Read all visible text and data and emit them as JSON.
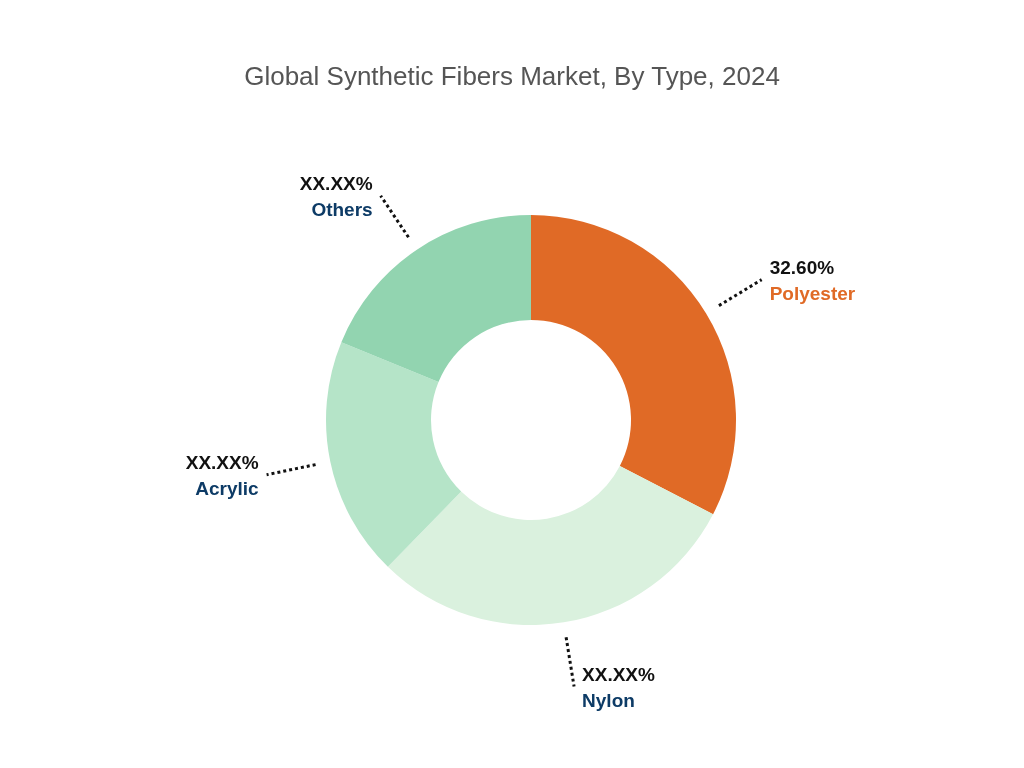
{
  "chart_data": {
    "type": "donut",
    "title": "Global Synthetic Fibers Market, By Type, 2024",
    "categories": [
      "Polyester",
      "Nylon",
      "Acrylic",
      "Others"
    ],
    "values": [
      32.6,
      29.7,
      18.9,
      18.8
    ],
    "value_labels": [
      "32.60%",
      "XX.XX%",
      "XX.XX%",
      "XX.XX%"
    ],
    "colors": [
      "#e06a26",
      "#daf1de",
      "#b5e4c8",
      "#92d4b0"
    ]
  }
}
